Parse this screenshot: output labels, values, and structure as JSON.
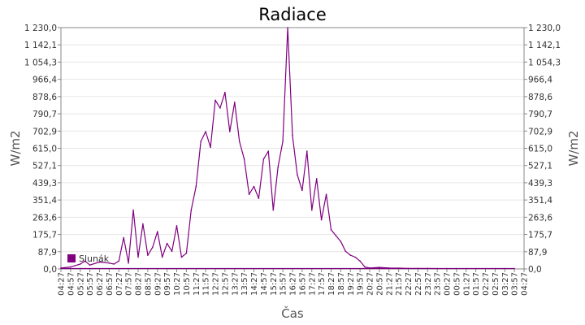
{
  "chart_data": {
    "type": "line",
    "title": "Radiace",
    "xlabel": "Čas",
    "ylabel_left": "W/m2",
    "ylabel_right": "W/m2",
    "ylim": [
      0,
      1230
    ],
    "y_ticks": [
      "0,0",
      "87,9",
      "175,7",
      "263,6",
      "351,4",
      "439,3",
      "527,1",
      "615,0",
      "702,9",
      "790,7",
      "878,6",
      "966,4",
      "1 054,3",
      "1 142,1",
      "1 230,0"
    ],
    "x_ticks": [
      "04:27",
      "04:57",
      "05:27",
      "05:57",
      "06:27",
      "06:57",
      "07:27",
      "07:57",
      "08:27",
      "08:57",
      "09:27",
      "09:57",
      "10:27",
      "10:57",
      "11:27",
      "11:57",
      "12:27",
      "12:57",
      "13:27",
      "13:57",
      "14:27",
      "14:57",
      "15:27",
      "15:57",
      "16:27",
      "16:57",
      "17:27",
      "17:57",
      "18:27",
      "18:57",
      "19:27",
      "19:57",
      "20:27",
      "20:57",
      "21:27",
      "21:57",
      "22:27",
      "22:57",
      "23:27",
      "23:57",
      "00:27",
      "00:57",
      "01:27",
      "01:57",
      "02:27",
      "02:57",
      "03:27",
      "03:57",
      "04:27"
    ],
    "grid": true,
    "legend_position": "bottom-left",
    "series": [
      {
        "name": "Slunák",
        "color": "#800080",
        "x": [
          "04:27",
          "04:57",
          "05:27",
          "05:42",
          "05:57",
          "06:27",
          "06:57",
          "07:12",
          "07:27",
          "07:42",
          "07:57",
          "08:12",
          "08:27",
          "08:42",
          "08:57",
          "09:12",
          "09:27",
          "09:42",
          "09:57",
          "10:12",
          "10:27",
          "10:42",
          "10:57",
          "11:12",
          "11:27",
          "11:42",
          "11:57",
          "12:12",
          "12:27",
          "12:42",
          "12:57",
          "13:12",
          "13:27",
          "13:42",
          "13:57",
          "14:12",
          "14:27",
          "14:42",
          "14:57",
          "15:12",
          "15:27",
          "15:42",
          "15:57",
          "16:12",
          "16:27",
          "16:42",
          "16:57",
          "17:12",
          "17:27",
          "17:42",
          "17:57",
          "18:12",
          "18:27",
          "18:42",
          "18:57",
          "19:12",
          "19:27",
          "19:42",
          "19:57",
          "20:12",
          "20:27",
          "20:57",
          "21:27",
          "21:57",
          "22:27",
          "22:57",
          "23:27",
          "23:57",
          "00:27",
          "00:57",
          "01:27",
          "01:57",
          "02:27",
          "02:57",
          "03:27",
          "03:57",
          "04:27"
        ],
        "values": [
          5,
          10,
          25,
          40,
          20,
          35,
          30,
          25,
          40,
          160,
          30,
          300,
          60,
          230,
          70,
          110,
          190,
          60,
          130,
          90,
          220,
          60,
          80,
          300,
          420,
          650,
          700,
          620,
          860,
          820,
          900,
          700,
          850,
          650,
          560,
          380,
          420,
          360,
          560,
          600,
          300,
          520,
          650,
          1230,
          680,
          480,
          400,
          600,
          300,
          460,
          250,
          380,
          200,
          170,
          140,
          90,
          70,
          60,
          40,
          10,
          5,
          8,
          5,
          4,
          3,
          3,
          3,
          2,
          2,
          2,
          2,
          2,
          2,
          2,
          2,
          2,
          2
        ]
      }
    ]
  }
}
